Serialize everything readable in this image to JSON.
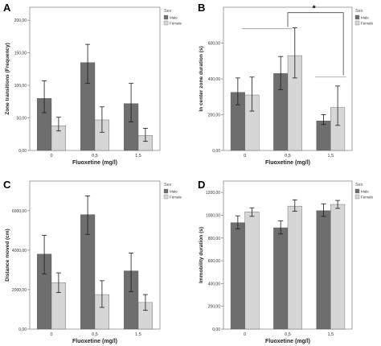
{
  "colors": {
    "male": "#6e6e6e",
    "female": "#d6d6d6",
    "plot_border": "#8c8c8c",
    "error_bar": "#1a1a1a",
    "tick_text": "#333333"
  },
  "legend": {
    "title": "Sex",
    "items": [
      {
        "label": "Male",
        "color": "#6e6e6e"
      },
      {
        "label": "Female",
        "color": "#d6d6d6"
      }
    ]
  },
  "chart_data": [
    {
      "panel_label": "A",
      "type": "bar",
      "categories": [
        "0",
        "0,5",
        "1,5"
      ],
      "xlabel": "Fluoxetine (mg/l)",
      "ylabel": "Zone transitions (Frequency)",
      "ylim": [
        0,
        220
      ],
      "yticks": [
        0,
        50,
        100,
        150,
        200
      ],
      "ytick_labels": [
        "0,00",
        "50,00",
        "100,00",
        "150,00",
        "200,00"
      ],
      "series": [
        {
          "name": "Male",
          "values": [
            80,
            135,
            72
          ],
          "err_low": [
            58,
            103,
            44
          ],
          "err_high": [
            107,
            163,
            103
          ]
        },
        {
          "name": "Female",
          "values": [
            38,
            47,
            23
          ],
          "err_low": [
            30,
            28,
            14
          ],
          "err_high": [
            51,
            67,
            34
          ]
        }
      ],
      "annotations": []
    },
    {
      "panel_label": "B",
      "type": "bar",
      "categories": [
        "0",
        "0,5",
        "1,5"
      ],
      "xlabel": "Fluoxetine (mg/l)",
      "ylabel": "In center zone duration (s)",
      "ylim": [
        0,
        800
      ],
      "yticks": [
        0,
        200,
        400,
        600
      ],
      "ytick_labels": [
        "0,00",
        "200,00",
        "400,00",
        "600,00"
      ],
      "series": [
        {
          "name": "Male",
          "values": [
            325,
            430,
            165
          ],
          "err_low": [
            255,
            340,
            145
          ],
          "err_high": [
            405,
            525,
            200
          ]
        },
        {
          "name": "Female",
          "values": [
            310,
            530,
            240
          ],
          "err_low": [
            220,
            405,
            140
          ],
          "err_high": [
            410,
            685,
            360
          ]
        }
      ],
      "annotations": [
        "*"
      ]
    },
    {
      "panel_label": "C",
      "type": "bar",
      "categories": [
        "0",
        "0,5",
        "1,5"
      ],
      "xlabel": "Fluoxetine (mg/l)",
      "ylabel": "Distance moved (cm)",
      "ylim": [
        0,
        7500
      ],
      "yticks": [
        0,
        2000,
        4000,
        6000
      ],
      "ytick_labels": [
        "0,00",
        "2000,00",
        "4000,00",
        "6000,00"
      ],
      "series": [
        {
          "name": "Male",
          "values": [
            3800,
            5800,
            2950
          ],
          "err_low": [
            2800,
            4800,
            1900
          ],
          "err_high": [
            4750,
            6750,
            3850
          ]
        },
        {
          "name": "Female",
          "values": [
            2350,
            1750,
            1350
          ],
          "err_low": [
            1850,
            1100,
            950
          ],
          "err_high": [
            2850,
            2450,
            1750
          ]
        }
      ],
      "annotations": []
    },
    {
      "panel_label": "D",
      "type": "bar",
      "categories": [
        "0",
        "0,5",
        "1,5"
      ],
      "xlabel": "Fluoxetine (mg/l)",
      "ylabel": "Immobility duration (s)",
      "ylim": [
        0,
        1300
      ],
      "yticks": [
        0,
        200,
        400,
        600,
        800,
        1000,
        1200
      ],
      "ytick_labels": [
        "0,00",
        "200,00",
        "400,00",
        "600,00",
        "800,00",
        "1000,00",
        "1200,00"
      ],
      "series": [
        {
          "name": "Male",
          "values": [
            935,
            890,
            1040
          ],
          "err_low": [
            880,
            835,
            990
          ],
          "err_high": [
            995,
            950,
            1100
          ]
        },
        {
          "name": "Female",
          "values": [
            1030,
            1080,
            1095
          ],
          "err_low": [
            990,
            1035,
            1060
          ],
          "err_high": [
            1065,
            1135,
            1130
          ]
        }
      ],
      "annotations": []
    }
  ]
}
